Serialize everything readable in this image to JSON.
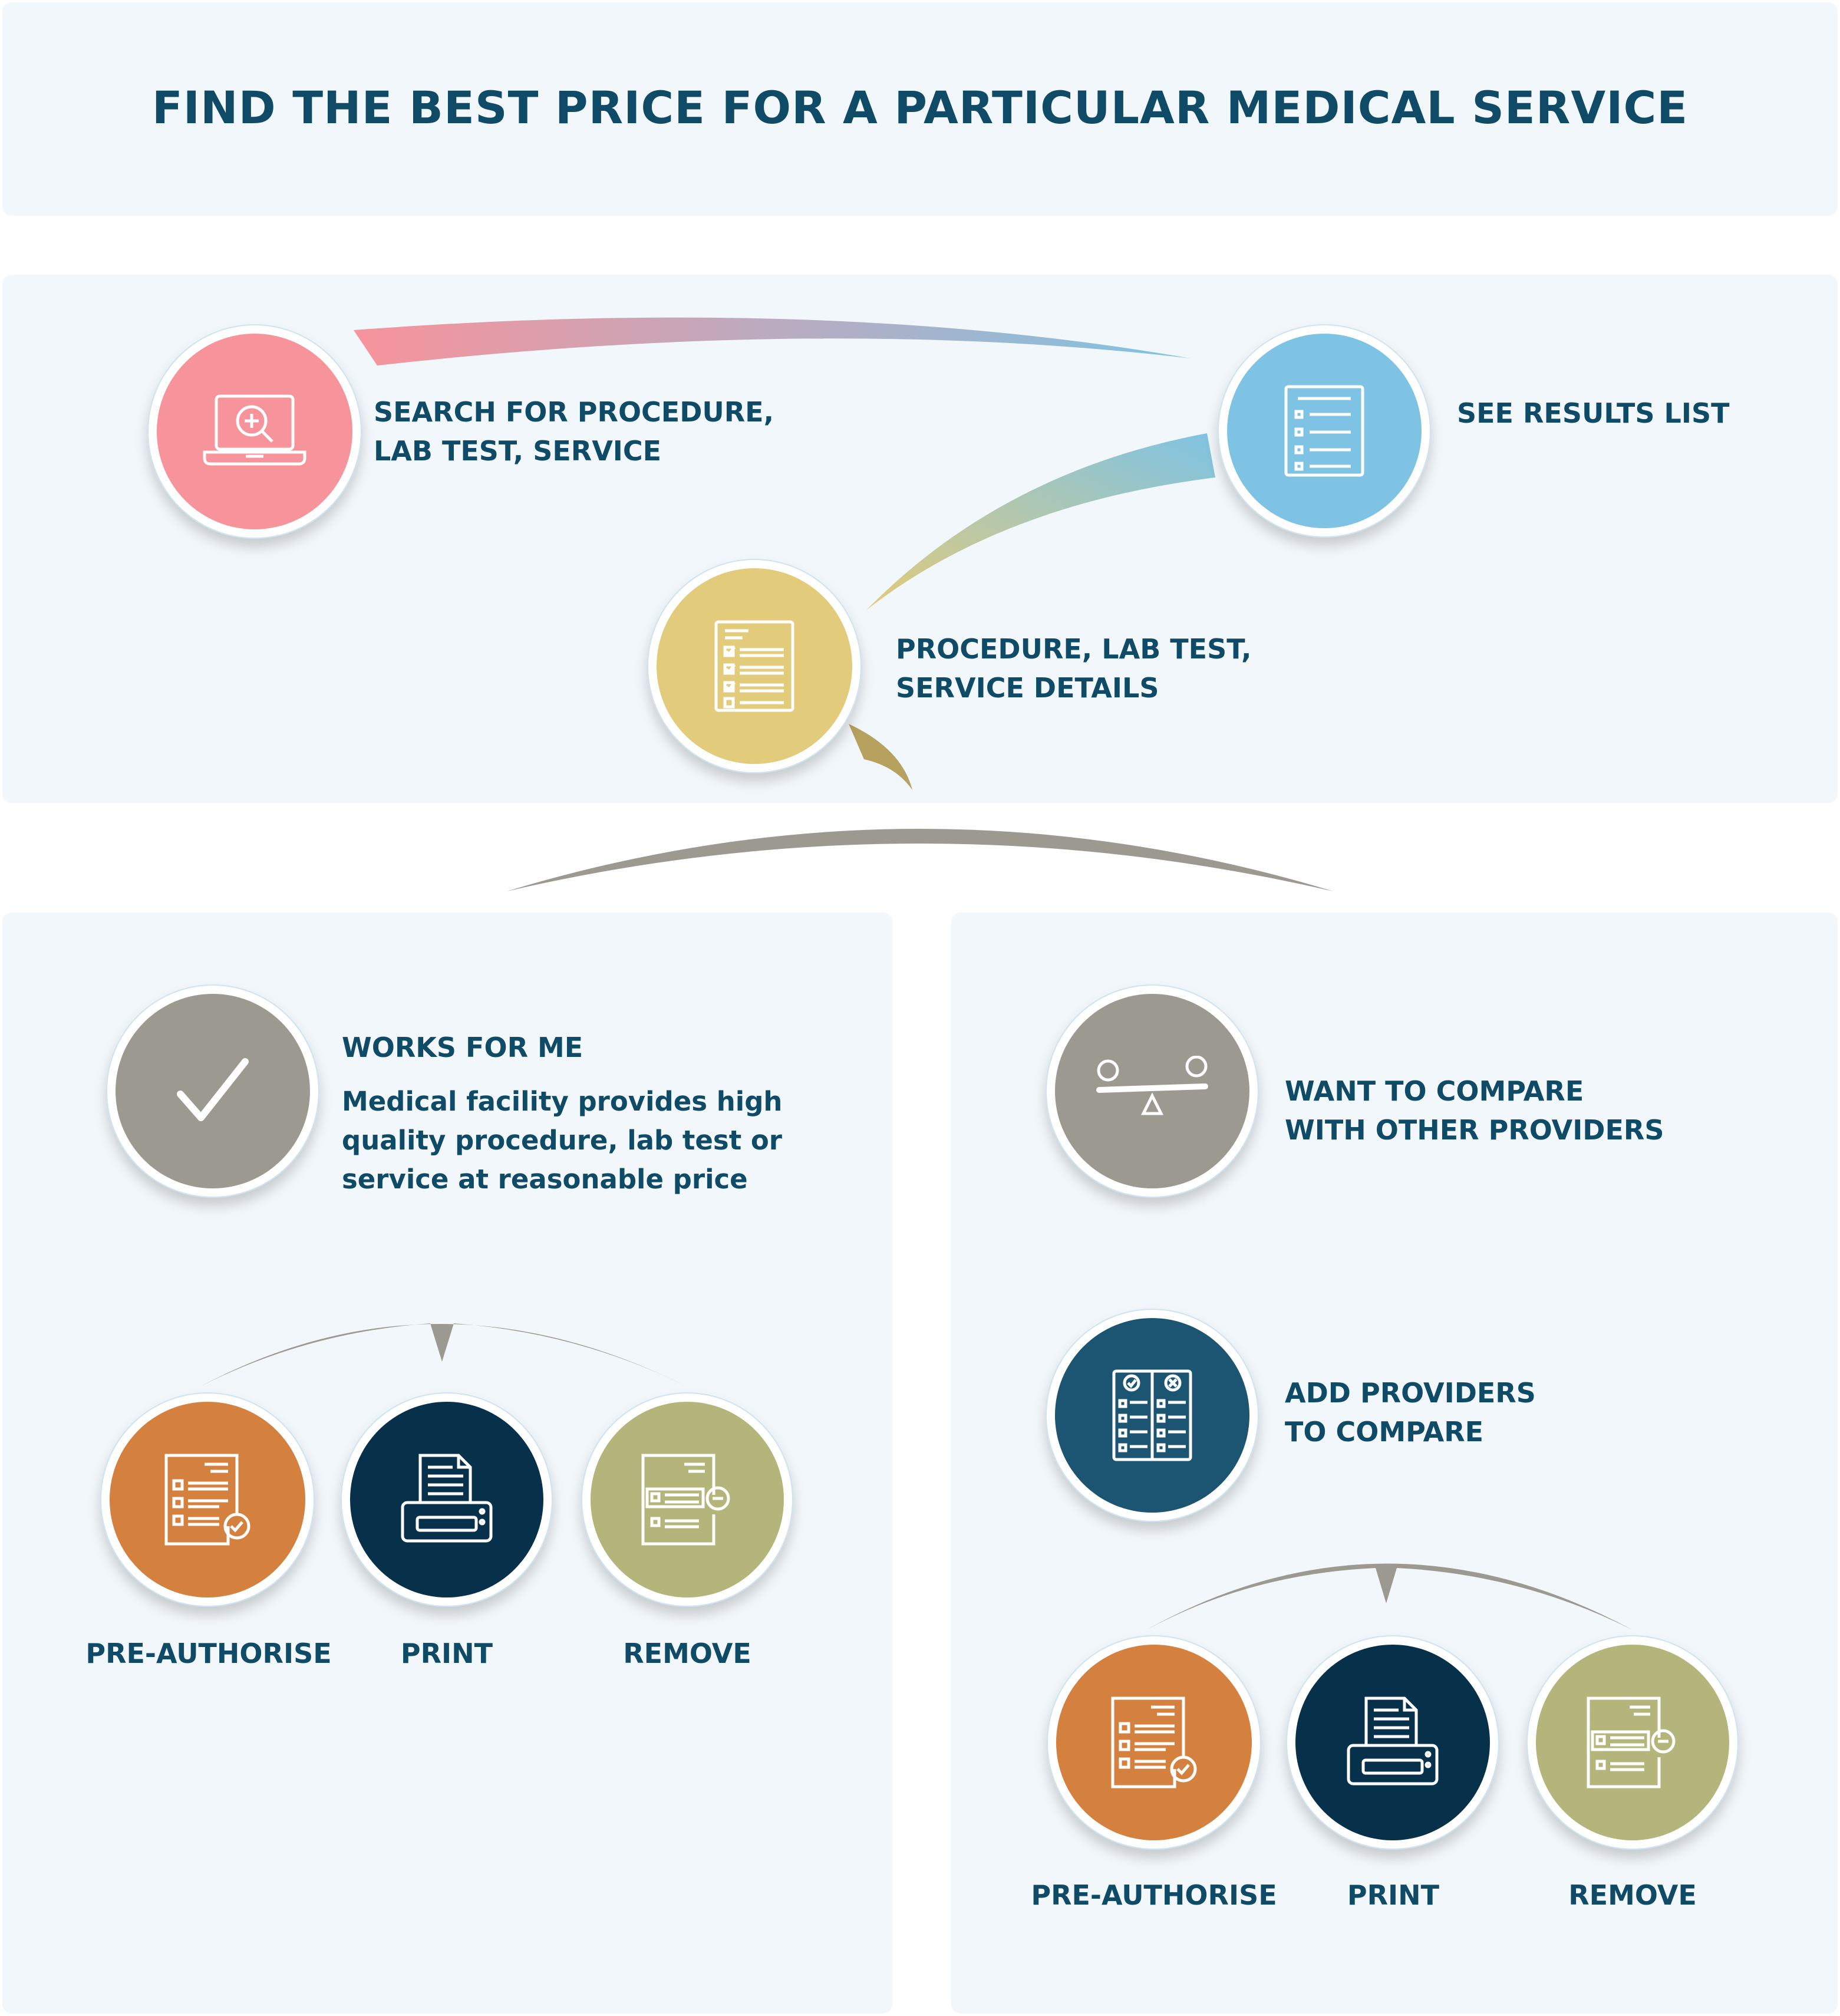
{
  "title": "FIND THE BEST PRICE FOR A PARTICULAR MEDICAL SERVICE",
  "colors": {
    "title": "#0f4a66",
    "panel": "#f2f7fb",
    "pink": "#f7939b",
    "blue": "#7ec3e3",
    "yellow": "#e2cb7b",
    "gray": "#9c9a90",
    "navy_teal": "#1c5571",
    "orange": "#d4813f",
    "dark_navy": "#07314a",
    "olive": "#b3b57a"
  },
  "flow": {
    "search": {
      "label": "SEARCH FOR PROCEDURE,\nLAB TEST, SERVICE",
      "icon": "laptop-search-icon"
    },
    "results": {
      "label": "SEE RESULTS LIST",
      "icon": "results-list-icon"
    },
    "details": {
      "label": "PROCEDURE, LAB TEST,\nSERVICE DETAILS",
      "icon": "checklist-document-icon"
    }
  },
  "left_branch": {
    "heading": "WORKS FOR ME",
    "description": "Medical facility provides high\nquality procedure, lab test or\nservice at reasonable price",
    "icon": "checkmark-icon",
    "actions": [
      {
        "label": "PRE-AUTHORISE",
        "icon": "document-check-icon"
      },
      {
        "label": "PRINT",
        "icon": "printer-icon"
      },
      {
        "label": "REMOVE",
        "icon": "document-remove-icon"
      }
    ]
  },
  "right_branch": {
    "compare": {
      "label": "WANT TO COMPARE\nWITH OTHER PROVIDERS",
      "icon": "balance-scale-icon"
    },
    "add": {
      "label": "ADD PROVIDERS\nTO COMPARE",
      "icon": "compare-checklist-icon"
    },
    "actions": [
      {
        "label": "PRE-AUTHORISE",
        "icon": "document-check-icon"
      },
      {
        "label": "PRINT",
        "icon": "printer-icon"
      },
      {
        "label": "REMOVE",
        "icon": "document-remove-icon"
      }
    ]
  }
}
